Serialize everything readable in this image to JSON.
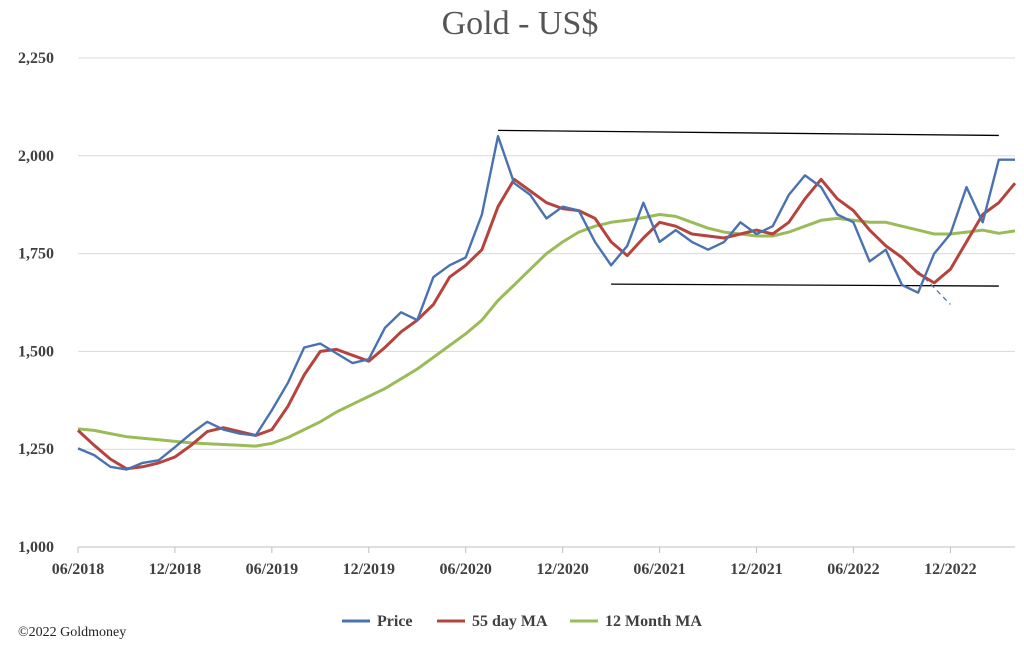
{
  "chart_data": {
    "type": "line",
    "title": "Gold - US$",
    "credit": "©2022 Goldmoney",
    "ylim": [
      1000,
      2250
    ],
    "yticks": [
      1000,
      1250,
      1500,
      1750,
      2000,
      2250
    ],
    "ytick_labels": [
      "1,000",
      "1,250",
      "1,500",
      "1,750",
      "2,000",
      "2,250"
    ],
    "xlim": [
      "2018-06",
      "2023-04"
    ],
    "xtick_labels": [
      "06/2018",
      "12/2018",
      "06/2019",
      "12/2019",
      "06/2020",
      "12/2020",
      "06/2021",
      "12/2021",
      "06/2022",
      "12/2022"
    ],
    "grid": "horizontal",
    "legend_position": "bottom",
    "colors": {
      "price": "#4a72b0",
      "ma55": "#b5443f",
      "ma12m": "#9bbb59",
      "trendline": "#000000"
    },
    "series": [
      {
        "name": "Price",
        "color": "#4a72b0",
        "points": [
          [
            "2018-06",
            1252
          ],
          [
            "2018-07",
            1235
          ],
          [
            "2018-08",
            1205
          ],
          [
            "2018-09",
            1198
          ],
          [
            "2018-10",
            1215
          ],
          [
            "2018-11",
            1222
          ],
          [
            "2018-12",
            1255
          ],
          [
            "2019-01",
            1290
          ],
          [
            "2019-02",
            1320
          ],
          [
            "2019-03",
            1300
          ],
          [
            "2019-04",
            1290
          ],
          [
            "2019-05",
            1285
          ],
          [
            "2019-06",
            1350
          ],
          [
            "2019-07",
            1420
          ],
          [
            "2019-08",
            1510
          ],
          [
            "2019-09",
            1520
          ],
          [
            "2019-10",
            1495
          ],
          [
            "2019-11",
            1470
          ],
          [
            "2019-12",
            1480
          ],
          [
            "2020-01",
            1560
          ],
          [
            "2020-02",
            1600
          ],
          [
            "2020-03",
            1580
          ],
          [
            "2020-04",
            1690
          ],
          [
            "2020-05",
            1720
          ],
          [
            "2020-06",
            1740
          ],
          [
            "2020-07",
            1850
          ],
          [
            "2020-08",
            2050
          ],
          [
            "2020-09",
            1930
          ],
          [
            "2020-10",
            1900
          ],
          [
            "2020-11",
            1840
          ],
          [
            "2020-12",
            1870
          ],
          [
            "2021-01",
            1860
          ],
          [
            "2021-02",
            1780
          ],
          [
            "2021-03",
            1720
          ],
          [
            "2021-04",
            1770
          ],
          [
            "2021-05",
            1880
          ],
          [
            "2021-06",
            1780
          ],
          [
            "2021-07",
            1810
          ],
          [
            "2021-08",
            1780
          ],
          [
            "2021-09",
            1760
          ],
          [
            "2021-10",
            1780
          ],
          [
            "2021-11",
            1830
          ],
          [
            "2021-12",
            1800
          ],
          [
            "2022-01",
            1820
          ],
          [
            "2022-02",
            1900
          ],
          [
            "2022-03",
            1950
          ],
          [
            "2022-04",
            1920
          ],
          [
            "2022-05",
            1850
          ],
          [
            "2022-06",
            1830
          ],
          [
            "2022-07",
            1730
          ],
          [
            "2022-08",
            1760
          ],
          [
            "2022-09",
            1670
          ],
          [
            "2022-10",
            1650
          ],
          [
            "2022-11",
            1750
          ],
          [
            "2022-12",
            1800
          ],
          [
            "2023-01",
            1920
          ],
          [
            "2023-02",
            1830
          ],
          [
            "2023-03",
            1990
          ],
          [
            "2023-04",
            1990
          ]
        ]
      },
      {
        "name": "55 day MA",
        "color": "#b5443f",
        "points": [
          [
            "2018-06",
            1298
          ],
          [
            "2018-07",
            1260
          ],
          [
            "2018-08",
            1225
          ],
          [
            "2018-09",
            1200
          ],
          [
            "2018-10",
            1205
          ],
          [
            "2018-11",
            1215
          ],
          [
            "2018-12",
            1230
          ],
          [
            "2019-01",
            1260
          ],
          [
            "2019-02",
            1295
          ],
          [
            "2019-03",
            1305
          ],
          [
            "2019-04",
            1295
          ],
          [
            "2019-05",
            1285
          ],
          [
            "2019-06",
            1300
          ],
          [
            "2019-07",
            1360
          ],
          [
            "2019-08",
            1440
          ],
          [
            "2019-09",
            1500
          ],
          [
            "2019-10",
            1505
          ],
          [
            "2019-11",
            1490
          ],
          [
            "2019-12",
            1475
          ],
          [
            "2020-01",
            1510
          ],
          [
            "2020-02",
            1550
          ],
          [
            "2020-03",
            1580
          ],
          [
            "2020-04",
            1620
          ],
          [
            "2020-05",
            1690
          ],
          [
            "2020-06",
            1720
          ],
          [
            "2020-07",
            1760
          ],
          [
            "2020-08",
            1870
          ],
          [
            "2020-09",
            1940
          ],
          [
            "2020-10",
            1910
          ],
          [
            "2020-11",
            1880
          ],
          [
            "2020-12",
            1865
          ],
          [
            "2021-01",
            1860
          ],
          [
            "2021-02",
            1840
          ],
          [
            "2021-03",
            1780
          ],
          [
            "2021-04",
            1745
          ],
          [
            "2021-05",
            1790
          ],
          [
            "2021-06",
            1830
          ],
          [
            "2021-07",
            1820
          ],
          [
            "2021-08",
            1800
          ],
          [
            "2021-09",
            1795
          ],
          [
            "2021-10",
            1790
          ],
          [
            "2021-11",
            1800
          ],
          [
            "2021-12",
            1810
          ],
          [
            "2022-01",
            1800
          ],
          [
            "2022-02",
            1830
          ],
          [
            "2022-03",
            1890
          ],
          [
            "2022-04",
            1940
          ],
          [
            "2022-05",
            1890
          ],
          [
            "2022-06",
            1860
          ],
          [
            "2022-07",
            1810
          ],
          [
            "2022-08",
            1770
          ],
          [
            "2022-09",
            1740
          ],
          [
            "2022-10",
            1700
          ],
          [
            "2022-11",
            1675
          ],
          [
            "2022-12",
            1710
          ],
          [
            "2023-01",
            1780
          ],
          [
            "2023-02",
            1850
          ],
          [
            "2023-03",
            1880
          ],
          [
            "2023-04",
            1930
          ]
        ]
      },
      {
        "name": "12 Month MA",
        "color": "#9bbb59",
        "points": [
          [
            "2018-06",
            1302
          ],
          [
            "2018-07",
            1298
          ],
          [
            "2018-08",
            1290
          ],
          [
            "2018-09",
            1282
          ],
          [
            "2018-10",
            1278
          ],
          [
            "2018-11",
            1274
          ],
          [
            "2018-12",
            1270
          ],
          [
            "2019-01",
            1266
          ],
          [
            "2019-02",
            1264
          ],
          [
            "2019-03",
            1262
          ],
          [
            "2019-04",
            1260
          ],
          [
            "2019-05",
            1258
          ],
          [
            "2019-06",
            1265
          ],
          [
            "2019-07",
            1280
          ],
          [
            "2019-08",
            1300
          ],
          [
            "2019-09",
            1320
          ],
          [
            "2019-10",
            1345
          ],
          [
            "2019-11",
            1365
          ],
          [
            "2019-12",
            1385
          ],
          [
            "2020-01",
            1405
          ],
          [
            "2020-02",
            1430
          ],
          [
            "2020-03",
            1455
          ],
          [
            "2020-04",
            1485
          ],
          [
            "2020-05",
            1515
          ],
          [
            "2020-06",
            1545
          ],
          [
            "2020-07",
            1580
          ],
          [
            "2020-08",
            1630
          ],
          [
            "2020-09",
            1670
          ],
          [
            "2020-10",
            1710
          ],
          [
            "2020-11",
            1750
          ],
          [
            "2020-12",
            1780
          ],
          [
            "2021-01",
            1805
          ],
          [
            "2021-02",
            1820
          ],
          [
            "2021-03",
            1830
          ],
          [
            "2021-04",
            1835
          ],
          [
            "2021-05",
            1842
          ],
          [
            "2021-06",
            1850
          ],
          [
            "2021-07",
            1845
          ],
          [
            "2021-08",
            1830
          ],
          [
            "2021-09",
            1815
          ],
          [
            "2021-10",
            1805
          ],
          [
            "2021-11",
            1800
          ],
          [
            "2021-12",
            1795
          ],
          [
            "2022-01",
            1795
          ],
          [
            "2022-02",
            1805
          ],
          [
            "2022-03",
            1820
          ],
          [
            "2022-04",
            1835
          ],
          [
            "2022-05",
            1840
          ],
          [
            "2022-06",
            1835
          ],
          [
            "2022-07",
            1830
          ],
          [
            "2022-08",
            1830
          ],
          [
            "2022-09",
            1820
          ],
          [
            "2022-10",
            1810
          ],
          [
            "2022-11",
            1800
          ],
          [
            "2022-12",
            1800
          ],
          [
            "2023-01",
            1805
          ],
          [
            "2023-02",
            1810
          ],
          [
            "2023-03",
            1802
          ],
          [
            "2023-04",
            1808
          ]
        ]
      }
    ],
    "trendlines": [
      {
        "from": [
          "2020-08",
          2065
        ],
        "to": [
          "2023-03",
          2052
        ],
        "style": "solid"
      },
      {
        "from": [
          "2021-03",
          1672
        ],
        "to": [
          "2023-03",
          1667
        ],
        "style": "solid"
      },
      {
        "from": [
          "2022-10",
          1705
        ],
        "to": [
          "2022-12",
          1620
        ],
        "style": "dashed",
        "color": "#4a72b0"
      }
    ]
  }
}
